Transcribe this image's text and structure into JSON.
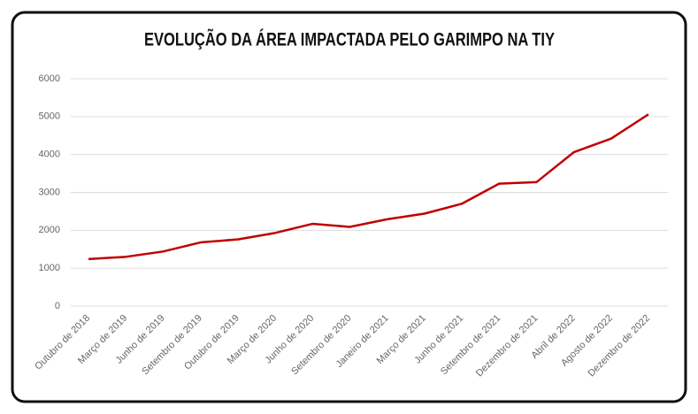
{
  "chart_data": {
    "type": "line",
    "title": "EVOLUÇÃO DA ÁREA IMPACTADA PELO GARIMPO NA TIY",
    "categories": [
      "Outubro de 2018",
      "Março de 2019",
      "Junho de 2019",
      "Setembro de 2019",
      "Outubro de 2019",
      "Março de 2020",
      "Junho de 2020",
      "Setembro de 2020",
      "Janeiro de 2021",
      "Março de 2021",
      "Junho de 2021",
      "Setembro de 2021",
      "Dezembro de 2021",
      "Abril de 2022",
      "Agosto de 2022",
      "Dezembro de 2022"
    ],
    "values": [
      1240,
      1300,
      1440,
      1680,
      1760,
      1930,
      2170,
      2090,
      2290,
      2440,
      2700,
      3230,
      3270,
      4060,
      4420,
      5060
    ],
    "color": "#c00000",
    "ylim": [
      0,
      6000
    ],
    "yticks": [
      0,
      1000,
      2000,
      3000,
      4000,
      5000,
      6000
    ],
    "grid": true
  }
}
